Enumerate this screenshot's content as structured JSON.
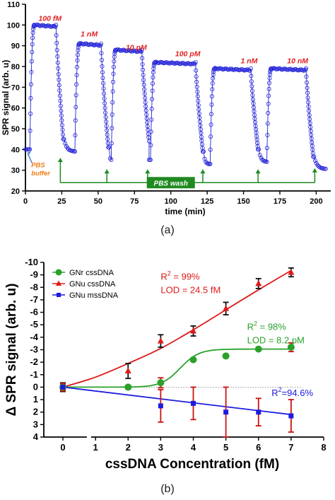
{
  "panel_labels": {
    "a": "(a)",
    "b": "(b)"
  },
  "chart_data": [
    {
      "type": "line",
      "ylabel": "SPR signal (arb. u)",
      "xlabel": "time (min)",
      "xlim": [
        0,
        210
      ],
      "ylim": [
        20,
        110
      ],
      "xticks": [
        0,
        25,
        50,
        75,
        100,
        125,
        150,
        175,
        200
      ],
      "yticks": [
        20,
        30,
        40,
        50,
        60,
        70,
        80,
        90,
        100,
        110
      ],
      "marker": "open-circle",
      "color": "#2323d8",
      "concentration_labels": [
        {
          "text": "100 fM",
          "x": 9,
          "y": 102
        },
        {
          "text": "1 nM",
          "x": 38,
          "y": 94.5
        },
        {
          "text": "10 pM",
          "x": 69,
          "y": 88
        },
        {
          "text": "100 pM",
          "x": 103,
          "y": 85
        },
        {
          "text": "1 nM",
          "x": 148,
          "y": 81.5
        },
        {
          "text": "10 nM",
          "x": 180,
          "y": 81.5
        }
      ],
      "segments": [
        {
          "start": 0,
          "baseline": 40,
          "rise_start": 3,
          "plateau": 100,
          "fall_start": 21,
          "floor": 39,
          "floor_end": 34
        },
        {
          "start": 34,
          "baseline": 39,
          "rise_start": 34,
          "plateau": 91,
          "fall_start": 52,
          "floor": 35,
          "floor_end": 59
        },
        {
          "start": 59,
          "baseline": 35,
          "rise_start": 59,
          "plateau": 88,
          "fall_start": 80,
          "floor": 38,
          "floor_end": 85
        },
        {
          "start": 85,
          "baseline": 35,
          "rise_start": 86,
          "plateau": 82,
          "fall_start": 117,
          "floor": 33,
          "floor_end": 126
        },
        {
          "start": 126,
          "baseline": 33,
          "rise_start": 127,
          "plateau": 79,
          "fall_start": 155,
          "floor": 34,
          "floor_end": 166
        },
        {
          "start": 166,
          "baseline": 34,
          "rise_start": 166,
          "plateau": 79,
          "fall_start": 193,
          "floor": 30.5,
          "floor_end": 207
        }
      ],
      "annotations": {
        "pbs_buffer": "PBS buffer",
        "pbs_wash": "PBS wash",
        "wash_times": [
          24,
          56,
          84,
          122,
          160,
          199
        ]
      }
    },
    {
      "type": "scatter",
      "xlabel": "cssDNA Concentration (fM)",
      "ylabel": "Δ SPR signal (arb. u)",
      "xlim": [
        0,
        8
      ],
      "ylim_display": [
        -10,
        4
      ],
      "y_axis_inverted": true,
      "xticks": [
        0,
        1,
        2,
        3,
        4,
        5,
        6,
        7,
        8
      ],
      "yticks": [
        -10,
        -9,
        -8,
        -7,
        -6,
        -5,
        -4,
        -3,
        -2,
        -1,
        0,
        1,
        2,
        3,
        4
      ],
      "ytick_labels": [
        "-10",
        "-9",
        "-8",
        "-7",
        "-6",
        "-5",
        "-4",
        "-3",
        "-2",
        "-1",
        "0",
        "1",
        "2",
        "3",
        "4"
      ],
      "axis_break_x": 0.8,
      "reference_line_y": 0,
      "series": [
        {
          "name": "GNr cssDNA",
          "marker": "circle",
          "color": "#2aa12a",
          "errcolor": "#cc1111",
          "x": [
            0,
            2,
            3,
            4,
            5,
            6,
            7
          ],
          "y": [
            0,
            0,
            -0.35,
            -2.2,
            -2.5,
            -3.05,
            -3.2
          ],
          "err": [
            0.25,
            0.15,
            0.4,
            0,
            0,
            0,
            0.35
          ],
          "fit": {
            "kind": "sigmoid",
            "A": 3.05,
            "x0": 3.6,
            "k": 3.5
          }
        },
        {
          "name": "GNu cssDNA",
          "marker": "triangle",
          "color": "#dd1a1a",
          "errcolor": "#111111",
          "x": [
            0,
            2,
            3,
            4,
            5,
            6,
            7
          ],
          "y": [
            0,
            -1.3,
            -3.7,
            -4.5,
            -6.3,
            -8.3,
            -9.2
          ],
          "err": [
            0.35,
            0.6,
            0.5,
            0.4,
            0.5,
            0.4,
            0.35
          ],
          "fit": {
            "kind": "polyline",
            "x": [
              0,
              1,
              2,
              3,
              4,
              5,
              6,
              7
            ],
            "y": [
              0,
              -0.8,
              -1.9,
              -3.1,
              -4.6,
              -6.2,
              -7.8,
              -9.35
            ]
          }
        },
        {
          "name": "GNu mssDNA",
          "marker": "square",
          "color": "#1b1be0",
          "errcolor": "#cc1111",
          "x": [
            0,
            3,
            4,
            5,
            6,
            7
          ],
          "y": [
            0,
            1.5,
            1.3,
            2,
            2,
            2.3
          ],
          "err": [
            0.3,
            1.3,
            1.3,
            2.0,
            1.1,
            1.3
          ],
          "fit": {
            "kind": "polyline",
            "x": [
              0,
              7
            ],
            "y": [
              0,
              2.2
            ]
          }
        }
      ],
      "annotations": {
        "gnu_css": {
          "r2_label": "R",
          "r2_sup": "2",
          "r2_rest": " = 99%",
          "lod": "LOD = 24.5 fM",
          "color": "#dd1a1a"
        },
        "gnr_css": {
          "r2_label": "R",
          "r2_sup": "2",
          "r2_rest": " = 98%",
          "lod": "LOD = 8.2 pM",
          "color": "#2aa12a"
        },
        "gnu_mss": {
          "r2_label": "R",
          "r2_sup": "2",
          "r2_rest": "=94.6%",
          "color": "#1b1be0"
        }
      },
      "legend": {
        "position": "top-left"
      }
    }
  ]
}
